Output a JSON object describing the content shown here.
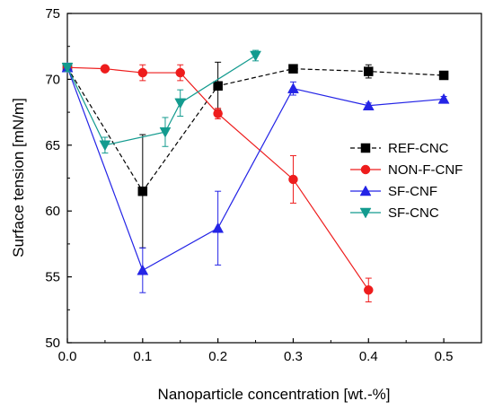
{
  "chart_data": {
    "type": "line",
    "xlabel": "Nanoparticle concentration [wt.-%]",
    "ylabel": "Surface tension [mN/m]",
    "xlim": [
      0.0,
      0.55
    ],
    "ylim": [
      50,
      75
    ],
    "xticks": [
      "0.0",
      "0.1",
      "0.2",
      "0.3",
      "0.4",
      "0.5"
    ],
    "yticks": [
      "50",
      "55",
      "60",
      "65",
      "70",
      "75"
    ],
    "grid": false,
    "legend_position": "right",
    "series": [
      {
        "name": "REF-CNC",
        "color": "#000000",
        "marker": "square",
        "dashed": true,
        "points": [
          {
            "x": 0.0,
            "y": 70.9,
            "err": 0.3
          },
          {
            "x": 0.1,
            "y": 61.5,
            "err": 4.3
          },
          {
            "x": 0.2,
            "y": 69.5,
            "err": 1.8
          },
          {
            "x": 0.3,
            "y": 70.8,
            "err": 0.2
          },
          {
            "x": 0.4,
            "y": 70.6,
            "err": 0.5
          },
          {
            "x": 0.5,
            "y": 70.3,
            "err": 0.3
          }
        ]
      },
      {
        "name": "NON-F-CNF",
        "color": "#ee1c1c",
        "marker": "circle",
        "dashed": false,
        "points": [
          {
            "x": 0.0,
            "y": 70.9,
            "err": 0.3
          },
          {
            "x": 0.05,
            "y": 70.8,
            "err": 0.2
          },
          {
            "x": 0.1,
            "y": 70.5,
            "err": 0.6
          },
          {
            "x": 0.15,
            "y": 70.5,
            "err": 0.6
          },
          {
            "x": 0.2,
            "y": 67.4,
            "err": 0.4
          },
          {
            "x": 0.3,
            "y": 62.4,
            "err": 1.8
          },
          {
            "x": 0.4,
            "y": 54.0,
            "err": 0.9
          }
        ]
      },
      {
        "name": "SF-CNF",
        "color": "#2424e6",
        "marker": "triangle-up",
        "dashed": false,
        "points": [
          {
            "x": 0.0,
            "y": 70.9,
            "err": 0.3
          },
          {
            "x": 0.1,
            "y": 55.5,
            "err": 1.7
          },
          {
            "x": 0.2,
            "y": 58.7,
            "err": 2.8
          },
          {
            "x": 0.3,
            "y": 69.3,
            "err": 0.5
          },
          {
            "x": 0.4,
            "y": 68.0,
            "err": 0.2
          },
          {
            "x": 0.5,
            "y": 68.5,
            "err": 0.2
          }
        ]
      },
      {
        "name": "SF-CNC",
        "color": "#139b8f",
        "marker": "triangle-down",
        "dashed": false,
        "points": [
          {
            "x": 0.0,
            "y": 70.9,
            "err": 0.3
          },
          {
            "x": 0.05,
            "y": 65.0,
            "err": 0.6
          },
          {
            "x": 0.13,
            "y": 66.0,
            "err": 1.1
          },
          {
            "x": 0.15,
            "y": 68.2,
            "err": 1.0
          },
          {
            "x": 0.25,
            "y": 71.8,
            "err": 0.4
          }
        ]
      }
    ]
  }
}
